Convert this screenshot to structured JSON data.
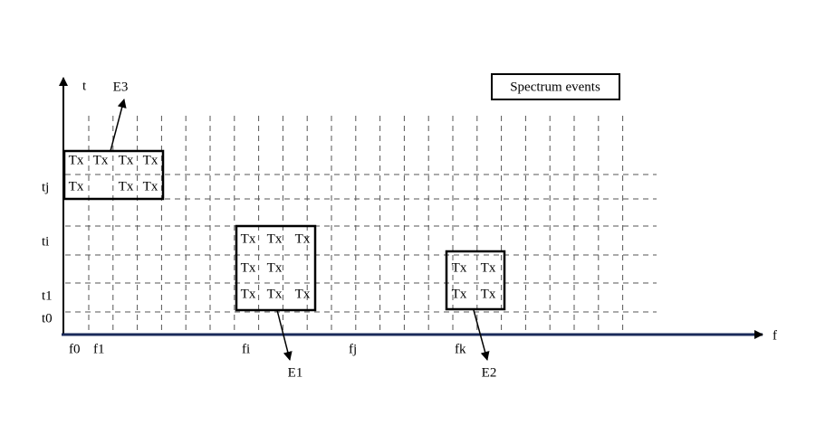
{
  "axes": {
    "y_label": "t",
    "x_label": "f"
  },
  "y_ticks": [
    "tj",
    "ti",
    "t1",
    "t0"
  ],
  "x_ticks": [
    "f0",
    "f1",
    "fi",
    "fj",
    "fk"
  ],
  "legend": "Spectrum events",
  "events": [
    {
      "label": "E3",
      "cells": [
        [
          "Tx",
          "Tx",
          "Tx",
          "Tx"
        ],
        [
          "Tx",
          null,
          "Tx",
          "Tx"
        ]
      ]
    },
    {
      "label": "E1",
      "cells": [
        [
          "Tx",
          "Tx",
          "Tx"
        ],
        [
          "Tx",
          "Tx",
          null
        ],
        [
          "Tx",
          "Tx",
          "Tx"
        ]
      ]
    },
    {
      "label": "E2",
      "cells": [
        [
          "Tx",
          "Tx"
        ],
        [
          "Tx",
          "Tx"
        ]
      ]
    }
  ]
}
